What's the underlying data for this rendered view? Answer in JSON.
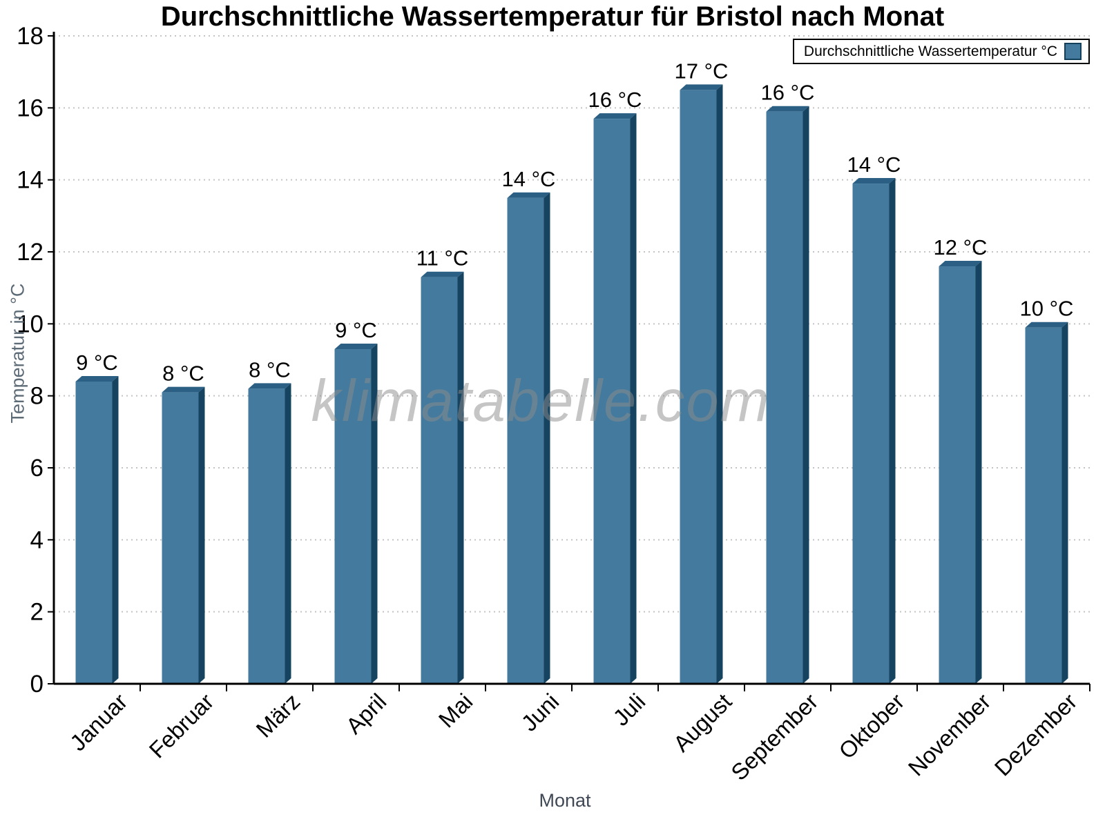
{
  "title": "Durchschnittliche Wassertemperatur für Bristol nach Monat",
  "legend": {
    "label": "Durchschnittliche Wassertemperatur °C"
  },
  "watermark": "klimatabelle.com",
  "axes": {
    "y_title": "Temperatur in °C",
    "x_title": "Monat"
  },
  "colors": {
    "bar_front": "#447a9e",
    "bar_top": "#2b5f83",
    "bar_side": "#16435f",
    "legend_swatch_border": "#123f5a",
    "grid": "#c3c3c3",
    "axis": "#000000",
    "tick_label": "#000000",
    "value_label": "#000000",
    "y_title": "#5d6b77",
    "x_title": "#3f4854",
    "watermark": "#8c8c8c"
  },
  "chart_data": {
    "type": "bar",
    "title": "Durchschnittliche Wassertemperatur für Bristol nach Monat",
    "xlabel": "Monat",
    "ylabel": "Temperatur in °C",
    "legend": [
      "Durchschnittliche Wassertemperatur °C"
    ],
    "legend_position": "top-right",
    "categories": [
      "Januar",
      "Februar",
      "März",
      "April",
      "Mai",
      "Juni",
      "Juli",
      "August",
      "September",
      "Oktober",
      "November",
      "Dezember"
    ],
    "values": [
      8.55,
      8.25,
      8.35,
      9.45,
      11.45,
      13.65,
      15.85,
      16.65,
      16.05,
      14.05,
      11.75,
      10.05
    ],
    "values_rounded": [
      9,
      8,
      8,
      9,
      11,
      14,
      16,
      17,
      16,
      14,
      12,
      10
    ],
    "value_labels": [
      "9 °C",
      "8 °C",
      "8 °C",
      "9 °C",
      "11 °C",
      "14 °C",
      "16 °C",
      "17 °C",
      "16 °C",
      "14 °C",
      "12 °C",
      "10 °C"
    ],
    "ylim": [
      0,
      18
    ],
    "ytick_step": 2,
    "grid": "horizontal-dotted",
    "bar_style": "3d-extruded"
  }
}
